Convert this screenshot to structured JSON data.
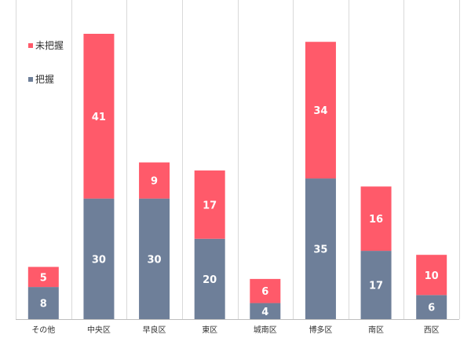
{
  "chart_data": {
    "type": "bar",
    "stacked": true,
    "categories": [
      "その他",
      "中央区",
      "早良区",
      "東区",
      "城南区",
      "博多区",
      "南区",
      "西区"
    ],
    "series": [
      {
        "name": "把握",
        "color": "#6E7F99",
        "values": [
          8,
          30,
          30,
          20,
          4,
          35,
          17,
          6
        ]
      },
      {
        "name": "未把握",
        "color": "#FF5A6A",
        "values": [
          5,
          41,
          9,
          17,
          6,
          34,
          16,
          10
        ]
      }
    ],
    "ylim": [
      0,
      75
    ],
    "grid": "vertical-separators",
    "legend": {
      "placement": "top-left",
      "order": [
        "未把握",
        "把握"
      ]
    }
  }
}
